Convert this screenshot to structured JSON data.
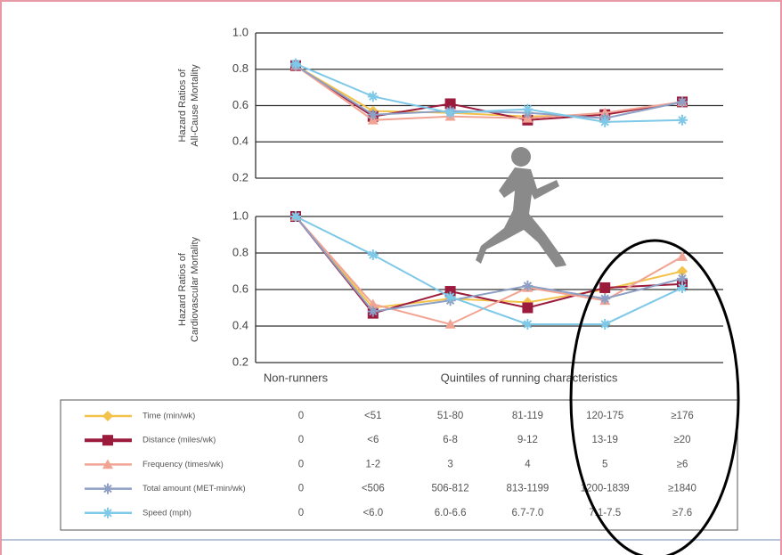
{
  "chart_data": [
    {
      "type": "line",
      "y_label": [
        "Hazard Ratios of",
        "All-Cause Mortality"
      ],
      "categories": [
        null,
        null,
        null,
        null,
        null,
        null
      ],
      "ylim": [
        0.2,
        1.0
      ],
      "yticks": [
        0.2,
        0.4,
        0.6,
        0.8,
        {
          "value": 1.0,
          "label": "1.0"
        }
      ],
      "grid": true,
      "series": [
        {
          "values": [
            0.82,
            0.57,
            0.56,
            0.54,
            0.55,
            0.62
          ]
        },
        {
          "values": [
            0.82,
            0.54,
            0.61,
            0.52,
            0.55,
            0.62
          ]
        },
        {
          "values": [
            0.82,
            0.52,
            0.54,
            0.53,
            0.56,
            0.62
          ]
        },
        {
          "values": [
            0.82,
            0.55,
            0.57,
            0.56,
            0.53,
            0.62
          ]
        },
        {
          "values": [
            0.83,
            0.65,
            0.56,
            0.58,
            0.51,
            0.52
          ]
        }
      ]
    },
    {
      "type": "line",
      "y_label": [
        "Hazard Ratios of",
        "Cardiovascular Mortality"
      ],
      "categories": [
        "Non-runners",
        null,
        null,
        null,
        null,
        null
      ],
      "x_label": "Quintiles of running characteristics",
      "ylim": [
        0.2,
        1.0
      ],
      "yticks": [
        0.2,
        0.4,
        0.6,
        0.8,
        {
          "value": 1.0,
          "label": "1.0"
        }
      ],
      "grid": true,
      "series": [
        {
          "values": [
            1.0,
            0.5,
            0.55,
            0.53,
            0.6,
            0.7
          ]
        },
        {
          "values": [
            1.0,
            0.47,
            0.59,
            0.5,
            0.61,
            0.63
          ]
        },
        {
          "values": [
            1.0,
            0.52,
            0.41,
            0.61,
            0.54,
            0.78
          ]
        },
        {
          "values": [
            1.0,
            0.48,
            0.54,
            0.62,
            0.55,
            0.66
          ]
        },
        {
          "values": [
            1.0,
            0.79,
            0.56,
            0.41,
            0.41,
            0.61
          ]
        }
      ]
    }
  ],
  "legend": [
    {
      "name": "Time (min/wk)",
      "color": "#f3c24a",
      "marker": "diamond",
      "cells": [
        "0",
        "<51",
        "51-80",
        "81-119",
        "120-175",
        "≥176"
      ]
    },
    {
      "name": "Distance (miles/wk)",
      "color": "#9c1a3c",
      "marker": "square",
      "cells": [
        "0",
        "<6",
        "6-8",
        "9-12",
        "13-19",
        "≥20"
      ]
    },
    {
      "name": "Frequency (times/wk)",
      "color": "#f1a493",
      "marker": "triangle",
      "cells": [
        "0",
        "1-2",
        "3",
        "4",
        "5",
        "≥6"
      ]
    },
    {
      "name": "Total amount (MET-min/wk)",
      "color": "#8d9fc4",
      "marker": "cross",
      "cells": [
        "0",
        "<506",
        "506-812",
        "813-1199",
        "1200-1839",
        "≥1840"
      ]
    },
    {
      "name": "Speed (mph)",
      "color": "#7ec8e8",
      "marker": "cross",
      "cells": [
        "0",
        "<6.0",
        "6.0-6.6",
        "6.7-7.0",
        "7.1-7.5",
        "≥7.6"
      ]
    }
  ]
}
